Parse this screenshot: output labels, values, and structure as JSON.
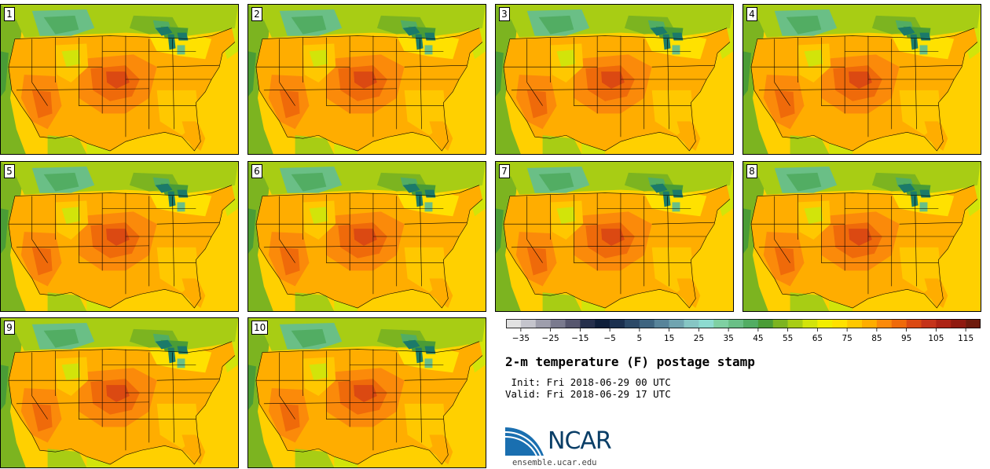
{
  "panels": [
    "1",
    "2",
    "3",
    "4",
    "5",
    "6",
    "7",
    "8",
    "9",
    "10"
  ],
  "colorbar": {
    "tick_labels": [
      "−35",
      "−25",
      "−15",
      "−5",
      "5",
      "15",
      "25",
      "35",
      "45",
      "55",
      "65",
      "75",
      "85",
      "95",
      "105",
      "115"
    ],
    "tick_values": [
      -35,
      -25,
      -15,
      -5,
      5,
      15,
      25,
      35,
      45,
      55,
      65,
      75,
      85,
      95,
      105,
      115
    ],
    "min": -40,
    "max": 120,
    "step": 5,
    "colors": [
      "#e2e2e2",
      "#c4c4cc",
      "#9e9eac",
      "#7a7a8e",
      "#56566e",
      "#26304c",
      "#0f1f3a",
      "#1b304f",
      "#2c4a68",
      "#3e6480",
      "#58849a",
      "#70a4b0",
      "#86c6c4",
      "#8ddbd0",
      "#7fd0a2",
      "#6abf86",
      "#52ad63",
      "#4a9c36",
      "#7cb420",
      "#a8cd14",
      "#d2e40a",
      "#f2ee00",
      "#ffe100",
      "#ffc800",
      "#ffad00",
      "#fb8a0a",
      "#ef6a0a",
      "#db4912",
      "#c5331a",
      "#ad2214",
      "#901a10",
      "#6e1a0c"
    ]
  },
  "title": "2-m temperature (F) postage stamp",
  "init_line": " Init: Fri 2018-06-29 00 UTC",
  "valid_line": "Valid: Fri 2018-06-29 17 UTC",
  "logo": {
    "name": "NCAR",
    "url": "ensemble.ucar.edu"
  }
}
